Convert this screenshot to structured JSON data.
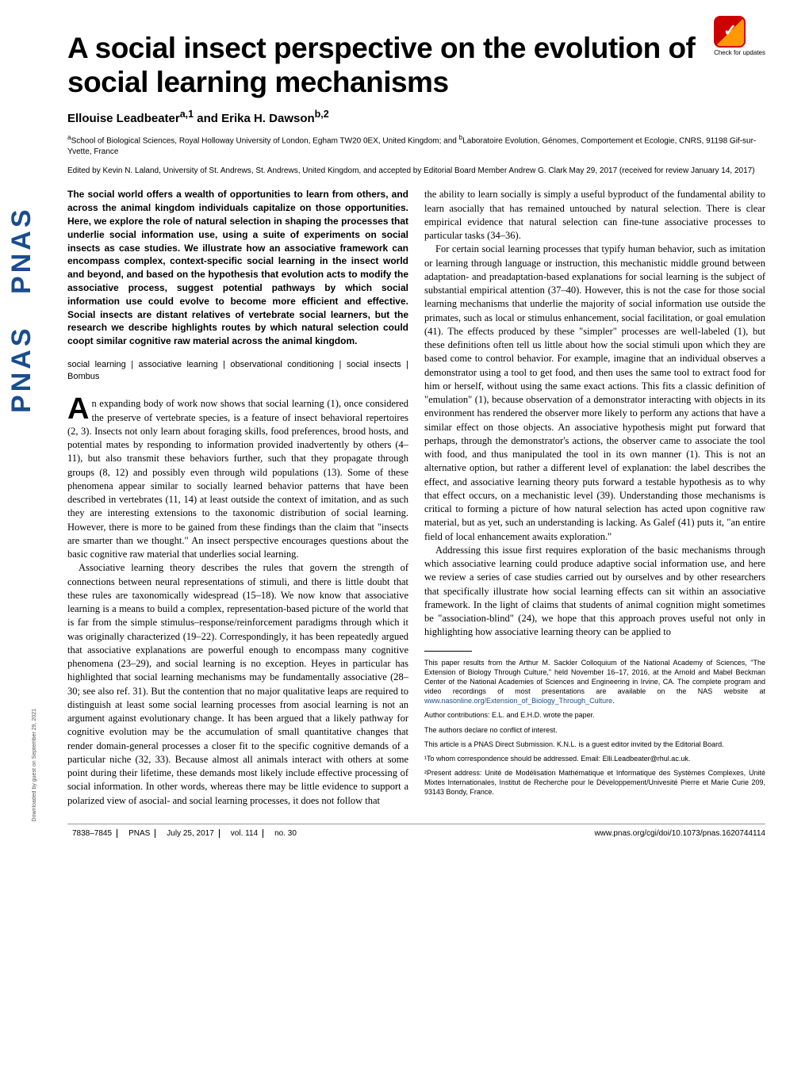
{
  "pnas_sidebar": [
    "PNAS",
    "PNAS"
  ],
  "download_note": "Downloaded by guest on September 29, 2021",
  "check_updates_label": "Check for updates",
  "title": "A social insect perspective on the evolution of social learning mechanisms",
  "authors_html": "Ellouise Leadbeater<sup>a,1</sup> and Erika H. Dawson<sup>b,2</sup>",
  "affiliations_html": "<sup>a</sup>School of Biological Sciences, Royal Holloway University of London, Egham TW20 0EX, United Kingdom; and <sup>b</sup>Laboratoire Evolution, Génomes, Comportement et Ecologie, CNRS, 91198 Gif-sur-Yvette, France",
  "edited": "Edited by Kevin N. Laland, University of St. Andrews, St. Andrews, United Kingdom, and accepted by Editorial Board Member Andrew G. Clark May 29, 2017 (received for review January 14, 2017)",
  "abstract": "The social world offers a wealth of opportunities to learn from others, and across the animal kingdom individuals capitalize on those opportunities. Here, we explore the role of natural selection in shaping the processes that underlie social information use, using a suite of experiments on social insects as case studies. We illustrate how an associative framework can encompass complex, context-specific social learning in the insect world and beyond, and based on the hypothesis that evolution acts to modify the associative process, suggest potential pathways by which social information use could evolve to become more efficient and effective. Social insects are distant relatives of vertebrate social learners, but the research we describe highlights routes by which natural selection could coopt similar cognitive raw material across the animal kingdom.",
  "keywords": "social learning | associative learning | observational conditioning | social insects | Bombus",
  "col1_dropcap": "A",
  "col1_p1": "n expanding body of work now shows that social learning (1), once considered the preserve of vertebrate species, is a feature of insect behavioral repertoires (2, 3). Insects not only learn about foraging skills, food preferences, brood hosts, and potential mates by responding to information provided inadvertently by others (4–11), but also transmit these behaviors further, such that they propagate through groups (8, 12) and possibly even through wild populations (13). Some of these phenomena appear similar to socially learned behavior patterns that have been described in vertebrates (11, 14) at least outside the context of imitation, and as such they are interesting extensions to the taxonomic distribution of social learning. However, there is more to be gained from these findings than the claim that \"insects are smarter than we thought.\" An insect perspective encourages questions about the basic cognitive raw material that underlies social learning.",
  "col1_p2": "Associative learning theory describes the rules that govern the strength of connections between neural representations of stimuli, and there is little doubt that these rules are taxonomically widespread (15–18). We now know that associative learning is a means to build a complex, representation-based picture of the world that is far from the simple stimulus–response/reinforcement paradigms through which it was originally characterized (19–22). Correspondingly, it has been repeatedly argued that associative explanations are powerful enough to encompass many cognitive phenomena (23–29), and social learning is no exception. Heyes in particular has highlighted that social learning mechanisms may be fundamentally associative (28–30; see also ref. 31). But the contention that no major qualitative leaps are required to distinguish at least some social learning processes from asocial learning is not an argument against evolutionary change. It has been argued that a likely pathway for cognitive evolution may be the accumulation of small quantitative changes that render domain-general processes a closer fit to the specific cognitive demands of a particular niche (32, 33). Because almost all animals interact with others at some point during their lifetime, these demands most likely include effective processing of social information. In other words, whereas there may be little evidence to support a polarized view of asocial- and social learning processes, it does not follow that",
  "col2_p1": "the ability to learn socially is simply a useful byproduct of the fundamental ability to learn asocially that has remained untouched by natural selection. There is clear empirical evidence that natural selection can fine-tune associative processes to particular tasks (34–36).",
  "col2_p2": "For certain social learning processes that typify human behavior, such as imitation or learning through language or instruction, this mechanistic middle ground between adaptation- and preadaptation-based explanations for social learning is the subject of substantial empirical attention (37–40). However, this is not the case for those social learning mechanisms that underlie the majority of social information use outside the primates, such as local or stimulus enhancement, social facilitation, or goal emulation (41). The effects produced by these \"simpler\" processes are well-labeled (1), but these definitions often tell us little about how the social stimuli upon which they are based come to control behavior. For example, imagine that an individual observes a demonstrator using a tool to get food, and then uses the same tool to extract food for him or herself, without using the same exact actions. This fits a classic definition of \"emulation\" (1), because observation of a demonstrator interacting with objects in its environment has rendered the observer more likely to perform any actions that have a similar effect on those objects. An associative hypothesis might put forward that perhaps, through the demonstrator's actions, the observer came to associate the tool with food, and thus manipulated the tool in its own manner (1). This is not an alternative option, but rather a different level of explanation: the label describes the effect, and associative learning theory puts forward a testable hypothesis as to why that effect occurs, on a mechanistic level (39). Understanding those mechanisms is critical to forming a picture of how natural selection has acted upon cognitive raw material, but as yet, such an understanding is lacking. As Galef (41) puts it, \"an entire field of local enhancement awaits exploration.\"",
  "col2_p3": "Addressing this issue first requires exploration of the basic mechanisms through which associative learning could produce adaptive social information use, and here we review a series of case studies carried out by ourselves and by other researchers that specifically illustrate how social learning effects can sit within an associative framework. In the light of claims that students of animal cognition might sometimes be \"association-blind\" (24), we hope that this approach proves useful not only in highlighting how associative learning theory can be applied to",
  "footnotes": {
    "colloquium": "This paper results from the Arthur M. Sackler Colloquium of the National Academy of Sciences, \"The Extension of Biology Through Culture,\" held November 16–17, 2016, at the Arnold and Mabel Beckman Center of the National Academies of Sciences and Engineering in Irvine, CA. The complete program and video recordings of most presentations are available on the NAS website at ",
    "colloquium_link": "www.nasonline.org/Extension_of_Biology_Through_Culture",
    "contributions": "Author contributions: E.L. and E.H.D. wrote the paper.",
    "conflict": "The authors declare no conflict of interest.",
    "direct": "This article is a PNAS Direct Submission. K.N.L. is a guest editor invited by the Editorial Board.",
    "corr": "¹To whom correspondence should be addressed. Email: Elli.Leadbeater@rhul.ac.uk.",
    "present": "²Present address: Unité de Modélisation Mathématique et Informatique des Systèmes Complexes, Unité Mixtes Internationales, Institut de Recherche pour le Développement/Univesité Pierre et Marie Curie 209, 93143 Bondy, France."
  },
  "footer": {
    "pages": "7838–7845",
    "journal": "PNAS",
    "date": "July 25, 2017",
    "vol": "vol. 114",
    "no": "no. 30",
    "doi": "www.pnas.org/cgi/doi/10.1073/pnas.1620744114"
  }
}
